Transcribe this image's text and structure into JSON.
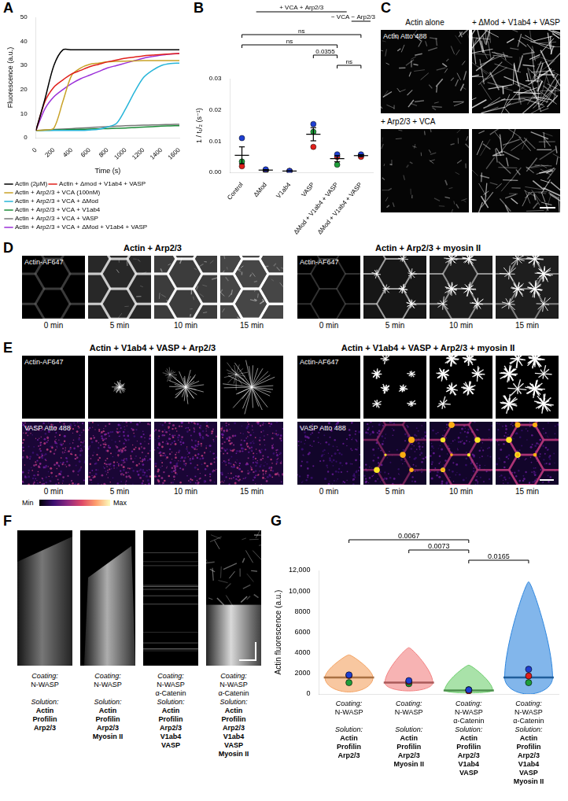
{
  "chart_data": [
    {
      "panel": "A",
      "type": "line",
      "x_label": "Time (s)",
      "y_label": "Fluorescence (a.u.)",
      "x": [
        0,
        100,
        200,
        300,
        400,
        500,
        600,
        700,
        800,
        900,
        1000,
        1100,
        1200,
        1300,
        1400,
        1500,
        1600
      ],
      "xlim": [
        0,
        1600
      ],
      "xticks": [
        0,
        200,
        400,
        600,
        800,
        1000,
        1200,
        1400,
        1600
      ],
      "ylim": [
        0,
        50
      ],
      "yticks": [
        0,
        10,
        20,
        30,
        40,
        50
      ],
      "grid": false,
      "legend": "bottom",
      "series": [
        {
          "name": "Actin (2μM)",
          "color": "#000000",
          "values": [
            3,
            16,
            30,
            36.5,
            36.5,
            36.5,
            36.5,
            36.5,
            36.5,
            36.5,
            36.5,
            36.5,
            36.5,
            36.5,
            36.5,
            36.5,
            36.5
          ]
        },
        {
          "name": "Actin + Δmod + V1ab4 + VASP",
          "color": "#e0201b",
          "values": [
            3,
            15,
            21,
            24,
            26.5,
            28,
            29.5,
            30.5,
            31.5,
            32.3,
            33,
            33.5,
            34,
            34.3,
            34.6,
            34.8,
            35
          ]
        },
        {
          "name": "Actin + Arp2/3 + VCA (100nM)",
          "color": "#c9a227",
          "values": [
            3,
            3.2,
            4,
            15,
            26,
            29,
            30.5,
            31,
            31.5,
            31.7,
            31.8,
            31.9,
            32,
            32,
            32,
            32,
            32
          ]
        },
        {
          "name": "Actin + Arp2/3 + VCA + ΔMod",
          "color": "#27b5d9",
          "values": [
            3,
            3,
            3,
            3,
            3,
            3,
            3.2,
            3.5,
            4.5,
            6,
            12,
            19,
            25,
            28,
            30,
            30.8,
            31
          ]
        },
        {
          "name": "Actin + Arp2/3 + VCA + V1ab4",
          "color": "#1e8c3a",
          "values": [
            3,
            3.1,
            3.2,
            3.3,
            3.4,
            3.5,
            3.6,
            3.7,
            3.8,
            3.9,
            4,
            4.2,
            4.4,
            4.6,
            4.8,
            4.9,
            5
          ]
        },
        {
          "name": "Actin + Arp2/3 + VCA + VASP",
          "color": "#777777",
          "values": [
            3,
            3.2,
            3.4,
            3.6,
            3.8,
            4,
            4.2,
            4.4,
            4.6,
            4.8,
            5,
            5.1,
            5.2,
            5.3,
            5.4,
            5.5,
            5.6
          ]
        },
        {
          "name": "Actin + Arp2/3 + VCA + ΔMod + V1ab4 + VASP",
          "color": "#9b30d9",
          "values": [
            3,
            12,
            17,
            20,
            22.5,
            24.5,
            26,
            27.5,
            29,
            30,
            31,
            32,
            33,
            33.7,
            34.3,
            34.7,
            35
          ]
        }
      ]
    },
    {
      "panel": "B",
      "type": "scatter",
      "y_label": "1 / t₁/₂ (s⁻¹)",
      "categories": [
        "Control",
        "ΔMod",
        "V1ab4",
        "VASP",
        "ΔMod + V1ab4 + VASP",
        "ΔMod + V1ab4 + VASP"
      ],
      "ylim": [
        0,
        0.03
      ],
      "yticks": [
        {
          "value": 0,
          "label": "0.00"
        },
        {
          "value": 0.01,
          "label": "0.01"
        },
        {
          "value": 0.02,
          "label": "0.02"
        },
        {
          "value": 0.03,
          "label": "0.03"
        }
      ],
      "grid": false,
      "series": [
        {
          "color": "#1f3fd1",
          "values": [
            0.011,
            0.001,
            0.0005,
            0.0155,
            0.0058,
            0.0058
          ]
        },
        {
          "color": "#e0201b",
          "values": [
            0.002,
            0.0008,
            0.0005,
            0.0082,
            0.005,
            0.005
          ]
        },
        {
          "color": "#1e9e3a",
          "values": [
            0.0035,
            0.0005,
            0.0004,
            0.013,
            0.0025,
            0.0055
          ]
        }
      ],
      "mean": [
        0.0055,
        0.00077,
        0.00047,
        0.01223,
        0.00443,
        0.0054
      ],
      "error": [
        0.0027,
        0.00015,
        3e-05,
        0.0021,
        0.001,
        0.0003
      ],
      "groups": [
        {
          "text": "+ VCA + Arp2/3",
          "from": 1,
          "to": 4
        },
        {
          "text": "− VCA − Arp2/3",
          "from": 5,
          "to": 5
        }
      ],
      "comparisons": [
        {
          "from": 0,
          "to": 5,
          "label": "ns"
        },
        {
          "from": 0,
          "to": 4,
          "label": "ns"
        },
        {
          "from": 3,
          "to": 4,
          "label": "0.0355"
        },
        {
          "from": 4,
          "to": 5,
          "label": "ns"
        }
      ]
    },
    {
      "panel": "G",
      "type": "violin",
      "y_label": "Actin fluorescence (a.u.)",
      "row_labels": [
        "Coating:",
        "Solution:"
      ],
      "coating": [
        [
          "N-WASP"
        ],
        [
          "N-WASP"
        ],
        [
          "N-WASP",
          "α-Catenin"
        ],
        [
          "N-WASP",
          "α-Catenin"
        ]
      ],
      "solution": [
        [
          "Actin",
          "Profilin",
          "Arp2/3"
        ],
        [
          "Actin",
          "Profilin",
          "Arp2/3",
          "Myosin II"
        ],
        [
          "Actin",
          "Profilin",
          "Arp2/3",
          "V1ab4",
          "VASP"
        ],
        [
          "Actin",
          "Profilin",
          "Arp2/3",
          "V1ab4",
          "VASP",
          "Myosin II"
        ]
      ],
      "colors": [
        "#f4a261",
        "#f28080",
        "#6fcf6f",
        "#2e86de"
      ],
      "range": [
        [
          200,
          3800
        ],
        [
          300,
          4500
        ],
        [
          100,
          2800
        ],
        [
          0,
          10900
        ]
      ],
      "median": [
        1600,
        1100,
        350,
        1600
      ],
      "replicates": [
        {
          "color": "#1f3fd1",
          "values": [
            1850,
            1300,
            400,
            2400
          ]
        },
        {
          "color": "#e0201b",
          "values": [
            1800,
            1200,
            300,
            1750
          ]
        },
        {
          "color": "#1e9e3a",
          "values": [
            1100,
            1000,
            420,
            1100
          ]
        }
      ],
      "ylim": [
        0,
        12000
      ],
      "yticks": [
        0,
        2000,
        4000,
        6000,
        8000,
        {
          "value": 10000,
          "label": "10,000"
        },
        {
          "value": 12000,
          "label": "12,000"
        }
      ],
      "grid": false,
      "comparisons": [
        {
          "from": 0,
          "to": 2,
          "label": "0.0067"
        },
        {
          "from": 1,
          "to": 2,
          "label": "0.0073"
        },
        {
          "from": 2,
          "to": 3,
          "label": "0.0165"
        }
      ]
    }
  ],
  "images": {
    "C": {
      "panel": "C",
      "columns": [
        "Actin alone",
        "+ ΔMod + V1ab4 + VASP"
      ],
      "row_label": "+ Arp2/3 + VCA",
      "channel": "Actin Atto 488"
    },
    "D": {
      "panel": "D",
      "groups": [
        "Actin + Arp2/3",
        "Actin + Arp2/3 + myosin II"
      ],
      "channel": "Actin-AF647",
      "times": [
        "0 min",
        "5 min",
        "10 min",
        "15 min"
      ]
    },
    "E": {
      "panel": "E",
      "groups": [
        "Actin + V1ab4 + VASP + Arp2/3",
        "Actin + V1ab4 + VASP + Arp2/3 + myosin II"
      ],
      "channels": [
        "Actin-AF647",
        "VASP Atto 488"
      ],
      "times": [
        "0 min",
        "5 min",
        "10 min",
        "15 min"
      ],
      "colorbar": [
        "Min",
        "Max"
      ]
    },
    "F": {
      "panel": "F",
      "row_labels": [
        "Coating:",
        "Solution:"
      ],
      "coating": [
        [
          "N-WASP"
        ],
        [
          "N-WASP"
        ],
        [
          "N-WASP",
          "α-Catenin"
        ],
        [
          "N-WASP",
          "α-Catenin"
        ]
      ],
      "solution": [
        [
          "Actin",
          "Profilin",
          "Arp2/3"
        ],
        [
          "Actin",
          "Profilin",
          "Arp2/3",
          "Myosin II"
        ],
        [
          "Actin",
          "Profilin",
          "Arp2/3",
          "V1ab4",
          "VASP"
        ],
        [
          "Actin",
          "Profilin",
          "Arp2/3",
          "V1ab4",
          "VASP",
          "Myosin II"
        ]
      ]
    }
  }
}
